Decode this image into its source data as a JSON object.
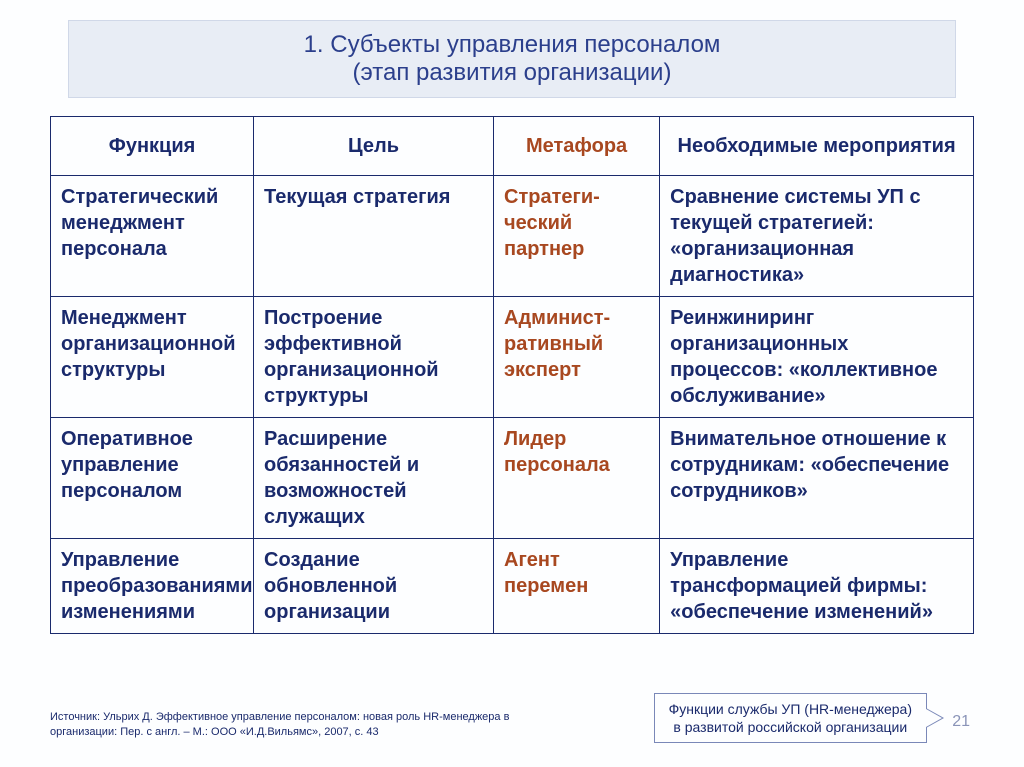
{
  "title": {
    "line1": "1. Субъекты управления персоналом",
    "line2": "(этап развития организации)"
  },
  "headers": {
    "func": "Функция",
    "goal": "Цель",
    "meta": "Метафора",
    "act": "Необходимые мероприятия"
  },
  "rows": [
    {
      "func": "Стратегический менеджмент персонала",
      "goal": "Текущая стратегия",
      "meta": "Стратеги-ческий партнер",
      "act": "Сравнение системы УП с текущей стратегией: «организационная диагностика»"
    },
    {
      "func": "Менеджмент организационной структуры",
      "goal": "Построение эффективной организационной структуры",
      "meta": "Админист-ративный эксперт",
      "act": "Реинжиниринг организационных процессов: «коллективное обслуживание»"
    },
    {
      "func": "Оперативное управление персоналом",
      "goal": "Расширение обязанностей и возможностей служащих",
      "meta": "Лидер персонала",
      "act": "Внимательное отношение к сотрудникам: «обеспечение сотрудников»"
    },
    {
      "func": "Управление преобразованиями изменениями",
      "goal": "Создание обновленной организации",
      "meta": "Агент перемен",
      "act": "Управление трансформацией фирмы: «обеспечение изменений»"
    }
  ],
  "source": "Источник: Ульрих Д. Эффективное управление персоналом: новая роль HR-менеджера в организации: Пер. с англ. – М.: ООО «И.Д.Вильямс», 2007, с. 43",
  "callout": {
    "line1": "Функции службы УП (HR-менеджера)",
    "line2": "в развитой российской организации"
  },
  "page": "21",
  "style": {
    "title_bg": "#e8edf5",
    "text_color": "#1a2a6c",
    "meta_color": "#a84820",
    "border_color": "#1a2a6c",
    "header_fontsize": 20,
    "cell_fontsize": 20,
    "title_fontsize": 24,
    "source_fontsize": 11,
    "callout_fontsize": 14
  }
}
